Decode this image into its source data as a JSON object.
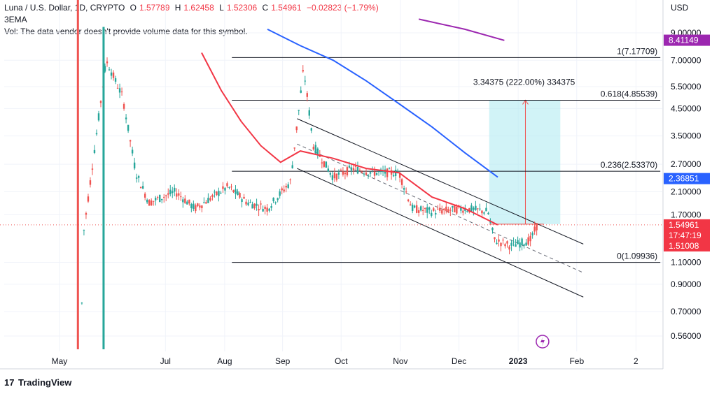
{
  "header": {
    "symbol": "Luna / U.S. Dollar, 1D, CRYPTO",
    "open_label": "O",
    "open": "1.57789",
    "high_label": "H",
    "high": "1.62458",
    "low_label": "L",
    "low": "1.52306",
    "close_label": "C",
    "close": "1.54961",
    "change": "−0.02823 (−1.79%)",
    "indicator": "3EMA",
    "volume_note": "Vol: The data vendor doesn't provide volume data for this symbol."
  },
  "currency": "USD",
  "brand": "TradingView",
  "colors": {
    "up": "#26a69a",
    "down": "#ef5350",
    "ema_red": "#f23645",
    "ema_blue": "#2962ff",
    "ema_purple": "#9c27b0",
    "target_zone": "#b2ebf2"
  },
  "chart_data": {
    "type": "candlestick",
    "price_scale": "log",
    "y_ticks": [
      "9.00000",
      "7.00000",
      "5.50000",
      "4.50000",
      "3.50000",
      "2.70000",
      "2.10000",
      "1.70000",
      "1.10000",
      "0.90000",
      "0.70000",
      "0.56000"
    ],
    "x_ticks": [
      "May",
      "Jul",
      "Aug",
      "Sep",
      "Oct",
      "Nov",
      "Dec",
      "2023",
      "Feb",
      "2"
    ],
    "price_badges": [
      {
        "value": "8.41149",
        "color": "#9c27b0"
      },
      {
        "value": "2.36851",
        "color": "#2962ff"
      },
      {
        "value": "1.54961",
        "color": "#f23645"
      },
      {
        "value": "17:47:19",
        "color": "#f23645"
      },
      {
        "value": "1.51008",
        "color": "#f23645"
      }
    ],
    "fib_levels": [
      {
        "label": "1(7.17709)",
        "price": 7.17709
      },
      {
        "label": "0.618(4.85539)",
        "price": 4.85539
      },
      {
        "label": "0.236(2.53370)",
        "price": 2.5337
      },
      {
        "label": "0(1.09936)",
        "price": 1.09936
      }
    ],
    "target_annotation": "3.34375 (222.00%) 334375",
    "series": [
      {
        "name": "EMA red",
        "color": "#f23645",
        "values": [
          [
            0.3,
            7.5
          ],
          [
            0.33,
            5.3
          ],
          [
            0.36,
            4.0
          ],
          [
            0.39,
            3.2
          ],
          [
            0.42,
            2.75
          ],
          [
            0.45,
            3.05
          ],
          [
            0.5,
            2.85
          ],
          [
            0.55,
            2.6
          ],
          [
            0.6,
            2.5
          ],
          [
            0.65,
            2.0
          ],
          [
            0.7,
            1.8
          ],
          [
            0.75,
            1.55
          ]
        ]
      },
      {
        "name": "EMA blue",
        "color": "#2962ff",
        "values": [
          [
            0.4,
            9.3
          ],
          [
            0.45,
            8.0
          ],
          [
            0.5,
            7.0
          ],
          [
            0.55,
            5.8
          ],
          [
            0.6,
            4.7
          ],
          [
            0.65,
            3.8
          ],
          [
            0.7,
            3.0
          ],
          [
            0.75,
            2.4
          ]
        ]
      },
      {
        "name": "EMA purple",
        "color": "#9c27b0",
        "values": [
          [
            0.63,
            10.2
          ],
          [
            0.7,
            9.3
          ],
          [
            0.76,
            8.4
          ]
        ]
      }
    ]
  }
}
